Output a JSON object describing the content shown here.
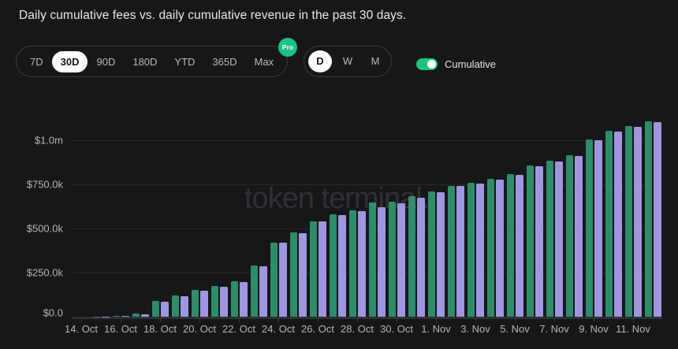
{
  "header": {
    "title": "Daily cumulative fees vs. daily cumulative revenue in the past 30 days."
  },
  "controls": {
    "range_options": [
      "7D",
      "30D",
      "90D",
      "180D",
      "YTD",
      "365D",
      "Max"
    ],
    "range_selected": "30D",
    "pro_badge": "Pro",
    "granularity_options": [
      "D",
      "W",
      "M"
    ],
    "granularity_selected": "D",
    "cumulative_label": "Cumulative",
    "cumulative_on": true
  },
  "watermark": "token terminal.",
  "colors": {
    "background": "#161719",
    "fees_green": "#2d8c69",
    "revenue_purple": "#9e96e0",
    "accent_green": "#1bc47e",
    "selected_pill": "#ffffff"
  },
  "chart_data": {
    "type": "bar",
    "title": "Daily cumulative fees vs. daily cumulative revenue in the past 30 days.",
    "unit": "USD",
    "grid": true,
    "legend_position": "none",
    "ylim": [
      0,
      1120000
    ],
    "y_ticks": [
      {
        "value": 0,
        "label": "$0.0"
      },
      {
        "value": 250000,
        "label": "$250.0k"
      },
      {
        "value": 500000,
        "label": "$500.0k"
      },
      {
        "value": 750000,
        "label": "$750.0k"
      },
      {
        "value": 1000000,
        "label": "$1.0m"
      }
    ],
    "categories": [
      "14. Oct",
      "15. Oct",
      "16. Oct",
      "17. Oct",
      "18. Oct",
      "19. Oct",
      "20. Oct",
      "21. Oct",
      "22. Oct",
      "23. Oct",
      "24. Oct",
      "25. Oct",
      "26. Oct",
      "27. Oct",
      "28. Oct",
      "29. Oct",
      "30. Oct",
      "31. Oct",
      "1. Nov",
      "2. Nov",
      "3. Nov",
      "4. Nov",
      "5. Nov",
      "6. Nov",
      "7. Nov",
      "8. Nov",
      "9. Nov",
      "10. Nov",
      "11. Nov",
      "12. Nov"
    ],
    "x_labeled_every": 2,
    "series": [
      {
        "name": "Cumulative fees",
        "color": "#2d8c69",
        "values": [
          0,
          1000,
          4000,
          16000,
          88000,
          120000,
          153000,
          173000,
          202000,
          289000,
          421000,
          478000,
          542000,
          582000,
          601000,
          648000,
          652000,
          681000,
          708000,
          743000,
          758000,
          780000,
          808000,
          856000,
          885000,
          914000,
          1003000,
          1052000,
          1080000,
          1106000
        ]
      },
      {
        "name": "Cumulative revenue",
        "color": "#9e96e0",
        "values": [
          0,
          1000,
          3000,
          13000,
          84000,
          117000,
          149000,
          170000,
          198000,
          285000,
          418000,
          474000,
          539000,
          575000,
          597000,
          620000,
          643000,
          675000,
          704000,
          739000,
          753000,
          775000,
          802000,
          852000,
          881000,
          909000,
          1000000,
          1048000,
          1076000,
          1101000
        ]
      }
    ]
  }
}
